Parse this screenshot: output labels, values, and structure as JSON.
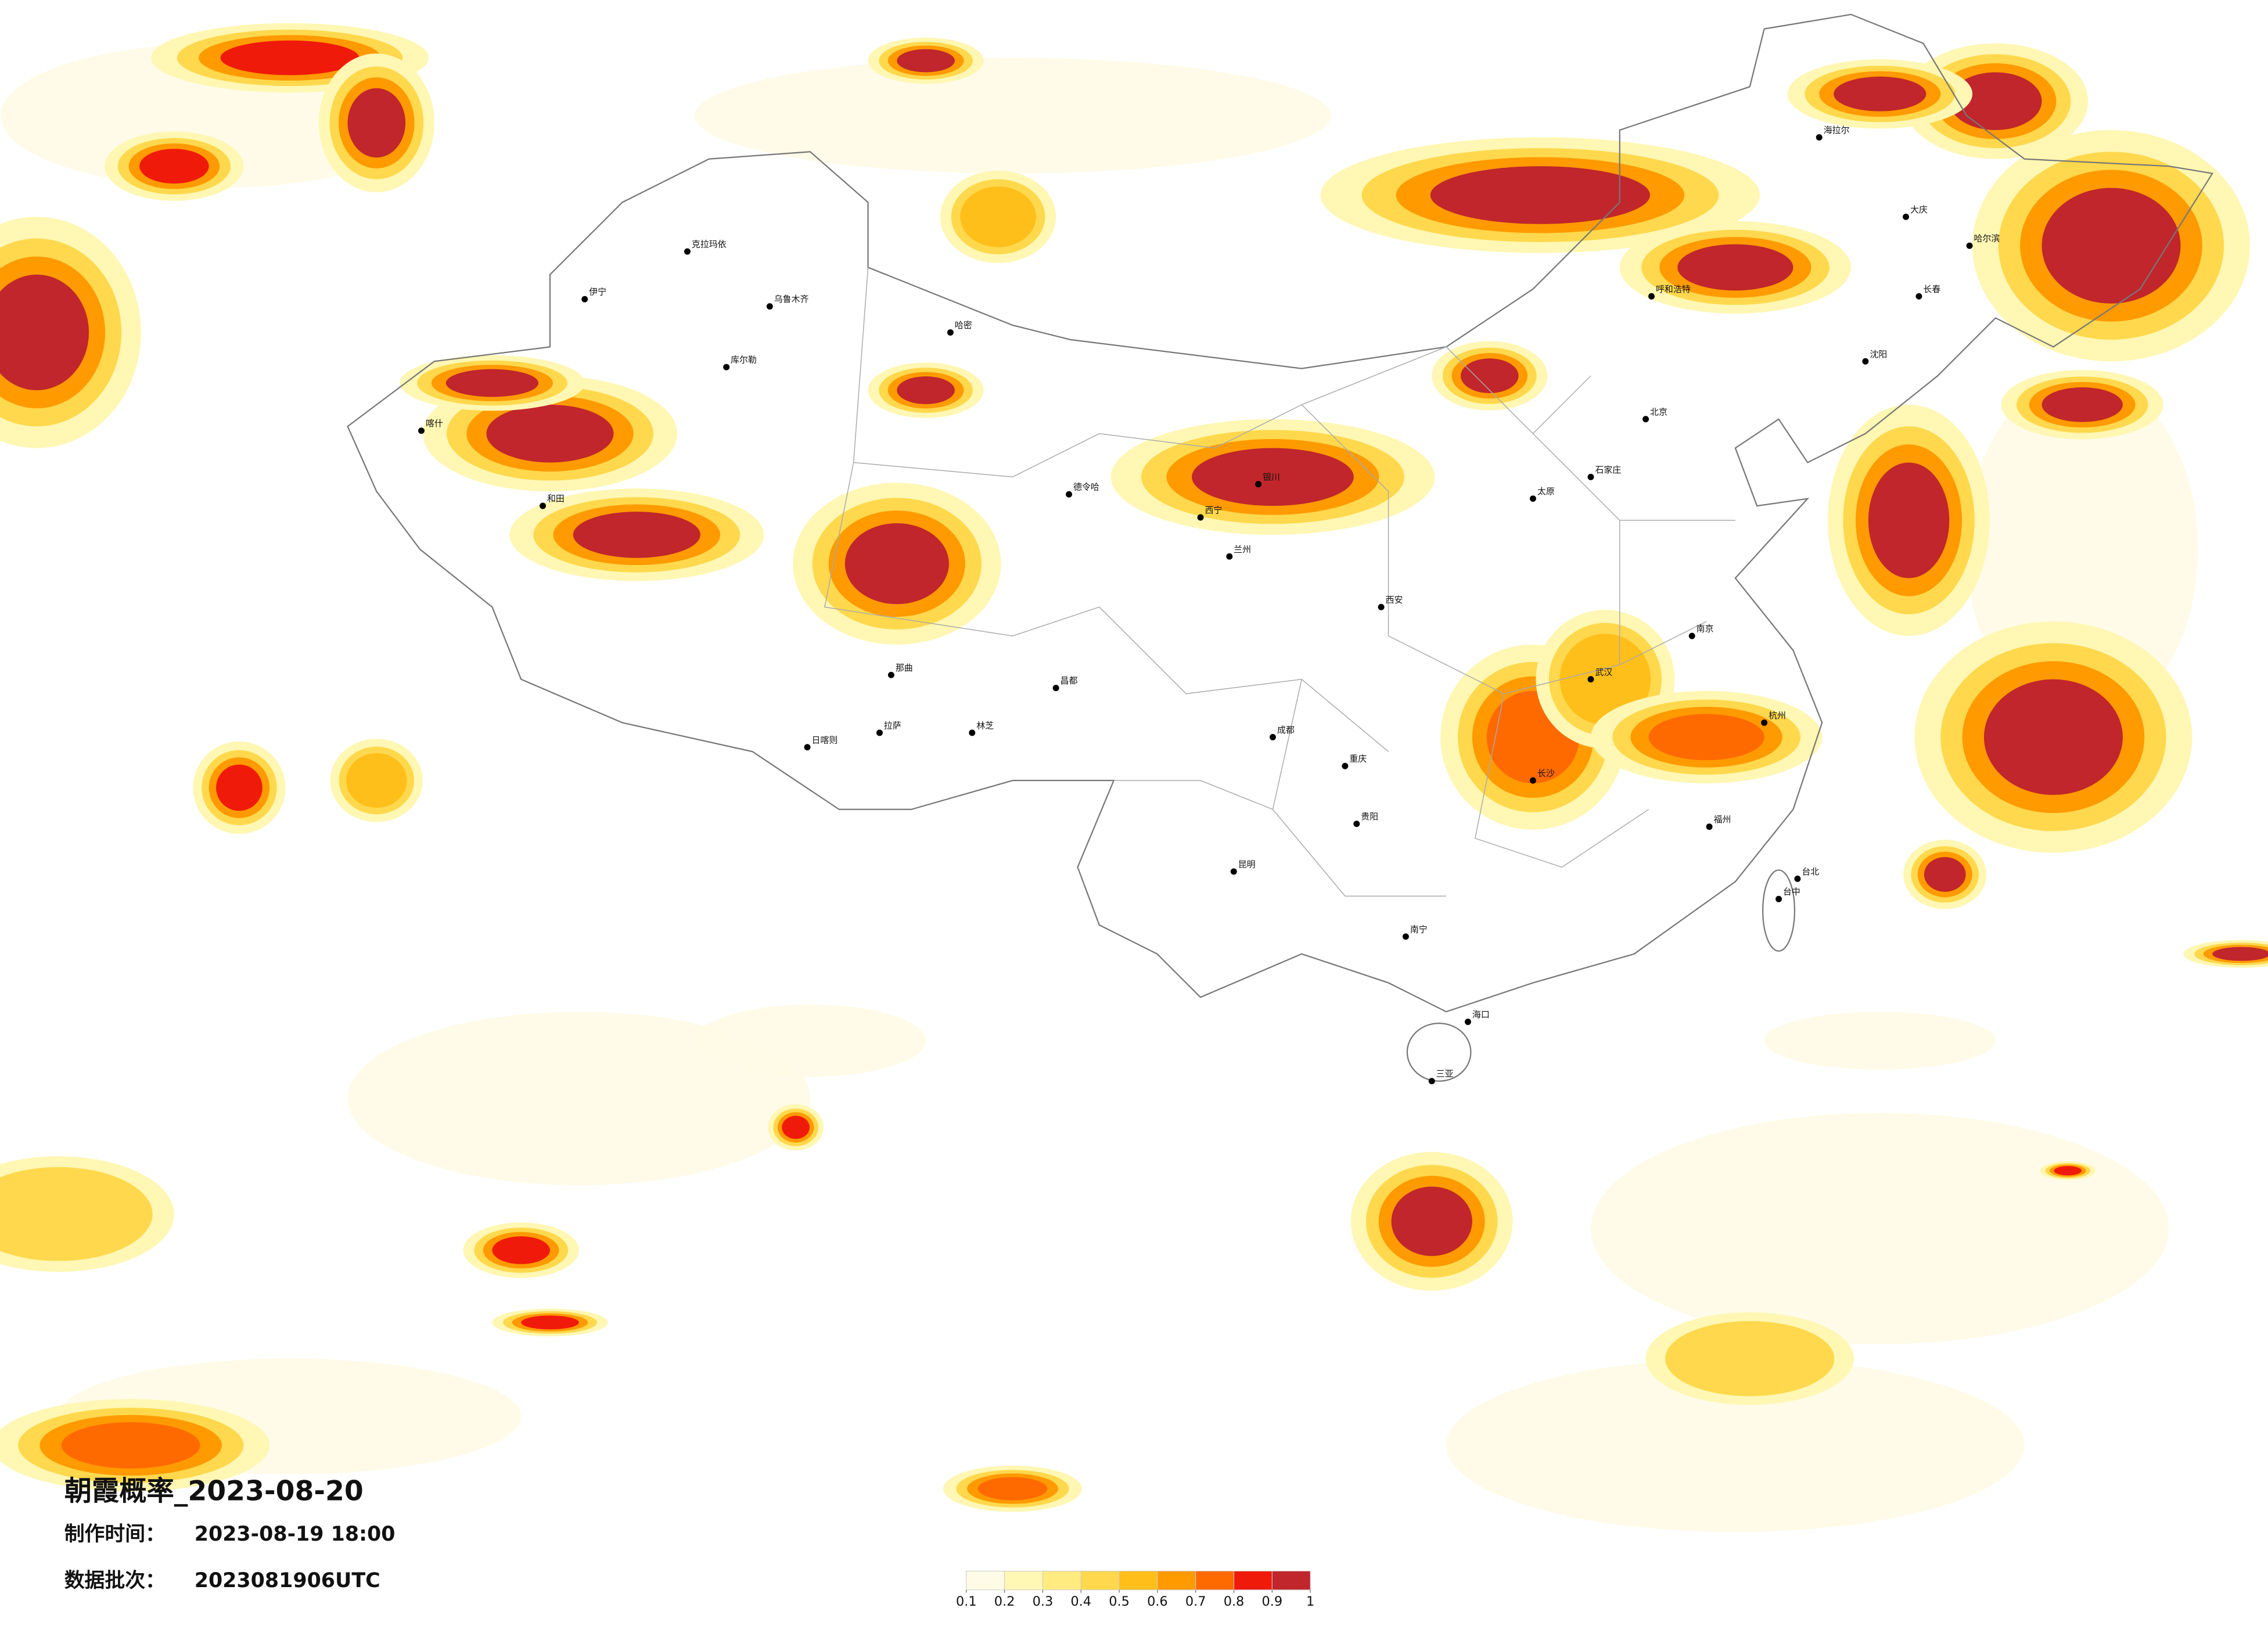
{
  "title": "朝霞概率_2023-08-20",
  "made_time": {
    "label": "制作时间：",
    "value": "2023-08-19 18:00"
  },
  "batch": {
    "label": "数据批次：",
    "value": "2023081906UTC"
  },
  "legend": {
    "colors": [
      "#fffbe6",
      "#fff7b3",
      "#ffeb80",
      "#ffd84d",
      "#ffbf1a",
      "#ff9a00",
      "#ff6a00",
      "#f01a0a",
      "#c0262b"
    ],
    "ticks": [
      0.1,
      0.2,
      0.3,
      0.4,
      0.5,
      0.6,
      0.7,
      0.8,
      0.9,
      1
    ]
  },
  "cities": [
    "克拉玛依",
    "伊宁",
    "乌鲁木齐",
    "库尔勒",
    "哈密",
    "喀什",
    "和田",
    "德令哈",
    "西宁",
    "兰州",
    "银川",
    "那曲",
    "拉萨",
    "日喀则",
    "林芝",
    "昌都",
    "呼和浩特",
    "北京",
    "石家庄",
    "太原",
    "西安",
    "成都",
    "重庆",
    "贵阳",
    "昆明",
    "南宁",
    "海口",
    "三亚",
    "武汉",
    "长沙",
    "南京",
    "杭州",
    "福州",
    "台北",
    "台中",
    "哈尔滨",
    "长春",
    "沈阳",
    "大庆",
    "海拉尔"
  ]
}
